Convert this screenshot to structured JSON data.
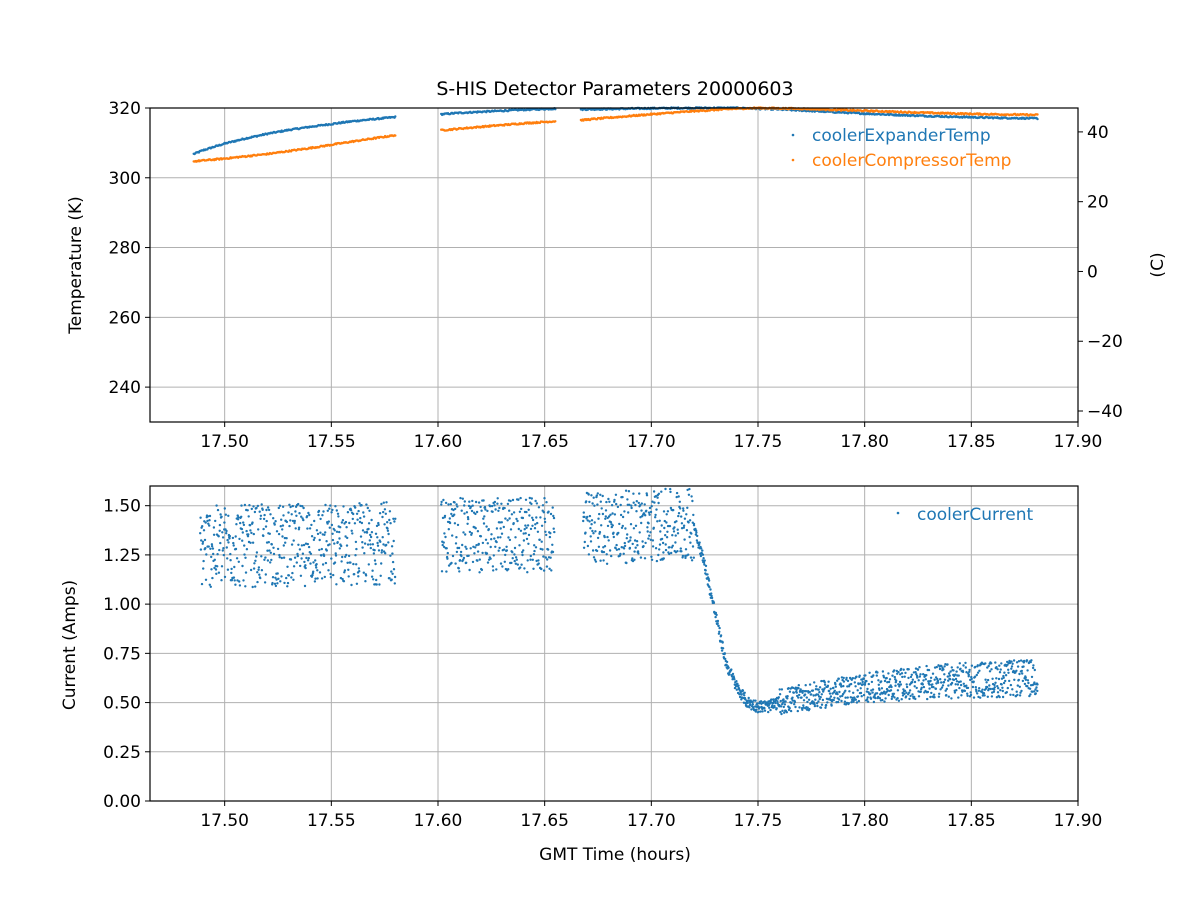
{
  "colors": {
    "blue": "#1f77b4",
    "orange": "#ff7f0e",
    "grid": "#b0b0b0",
    "axis": "#000000"
  },
  "chart_data": [
    {
      "type": "scatter",
      "title": "S-HIS Detector Parameters 20000603",
      "xlabel": "",
      "ylabel": "Temperature (K)",
      "y2label": "(C)",
      "xlim": [
        17.465,
        17.9
      ],
      "ylim": [
        230,
        320
      ],
      "y2lim": [
        -43.15,
        46.85
      ],
      "xticks": [
        "17.50",
        "17.55",
        "17.60",
        "17.65",
        "17.70",
        "17.75",
        "17.80",
        "17.85",
        "17.90"
      ],
      "yticks": [
        "240",
        "260",
        "280",
        "300",
        "320"
      ],
      "y2ticks": [
        "−40",
        "−20",
        "0",
        "20",
        "40"
      ],
      "grid": true,
      "legend_position": "top-right",
      "series": [
        {
          "name": "coolerExpanderTemp",
          "color": "#1f77b4",
          "segments": [
            {
              "x": [
                17.4855,
                17.49,
                17.5,
                17.51,
                17.52,
                17.53,
                17.54,
                17.55,
                17.56,
                17.57,
                17.58
              ],
              "y": [
                306.8,
                307.9,
                309.8,
                311.3,
                312.6,
                313.7,
                314.6,
                315.4,
                316.2,
                316.8,
                317.4
              ]
            },
            {
              "x": [
                17.6015,
                17.61,
                17.62,
                17.63,
                17.64,
                17.655
              ],
              "y": [
                318.2,
                318.6,
                318.9,
                319.2,
                319.5,
                319.8
              ]
            },
            {
              "x": [
                17.667,
                17.68,
                17.7,
                17.72,
                17.74,
                17.76,
                17.78,
                17.8,
                17.82,
                17.84,
                17.86,
                17.881
              ],
              "y": [
                319.6,
                319.7,
                319.9,
                320.0,
                320.0,
                319.6,
                319.0,
                318.4,
                317.9,
                317.5,
                317.2,
                317.0
              ]
            }
          ]
        },
        {
          "name": "coolerCompressorTemp",
          "color": "#ff7f0e",
          "segments": [
            {
              "x": [
                17.4855,
                17.5,
                17.52,
                17.54,
                17.56,
                17.58
              ],
              "y": [
                304.7,
                305.5,
                306.8,
                308.5,
                310.4,
                312.2
              ]
            },
            {
              "x": [
                17.6015,
                17.62,
                17.64,
                17.655
              ],
              "y": [
                313.6,
                314.6,
                315.6,
                316.2
              ]
            },
            {
              "x": [
                17.667,
                17.68,
                17.7,
                17.72,
                17.74,
                17.75,
                17.77,
                17.79,
                17.81,
                17.83,
                17.85,
                17.881
              ],
              "y": [
                316.5,
                317.2,
                318.2,
                319.1,
                319.8,
                320.0,
                319.8,
                319.4,
                319.0,
                318.6,
                318.3,
                318.0
              ]
            }
          ]
        }
      ]
    },
    {
      "type": "scatter",
      "title": "",
      "xlabel": "GMT Time (hours)",
      "ylabel": "Current (Amps)",
      "xlim": [
        17.465,
        17.9
      ],
      "ylim": [
        0.0,
        1.6
      ],
      "xticks": [
        "17.50",
        "17.55",
        "17.60",
        "17.65",
        "17.70",
        "17.75",
        "17.80",
        "17.85",
        "17.90"
      ],
      "yticks": [
        "0.00",
        "0.25",
        "0.50",
        "0.75",
        "1.00",
        "1.25",
        "1.50"
      ],
      "grid": true,
      "legend_position": "top-right",
      "series": [
        {
          "name": "coolerCurrent",
          "color": "#1f77b4",
          "segments": [
            {
              "x": [
                17.4885,
                17.58
              ],
              "y_low": [
                1.08,
                1.1
              ],
              "y_high": [
                1.5,
                1.52
              ],
              "noisy": true
            },
            {
              "x": [
                17.6015,
                17.6545
              ],
              "y_low": [
                1.16,
                1.16
              ],
              "y_high": [
                1.54,
                1.54
              ],
              "noisy": true
            },
            {
              "x": [
                17.668,
                17.72
              ],
              "y_low": [
                1.2,
                1.22
              ],
              "y_high": [
                1.57,
                1.59
              ],
              "noisy": true
            },
            {
              "x": [
                17.72,
                17.725,
                17.73,
                17.735,
                17.74,
                17.745,
                17.75,
                17.755,
                17.76
              ],
              "y": [
                1.4,
                1.2,
                0.95,
                0.7,
                0.58,
                0.5,
                0.48,
                0.48,
                0.5
              ],
              "spread": 0.06
            },
            {
              "x": [
                17.76,
                17.8,
                17.84,
                17.881
              ],
              "y_low": [
                0.44,
                0.5,
                0.52,
                0.53
              ],
              "y_high": [
                0.57,
                0.65,
                0.7,
                0.72
              ],
              "noisy": true
            }
          ]
        }
      ]
    }
  ]
}
